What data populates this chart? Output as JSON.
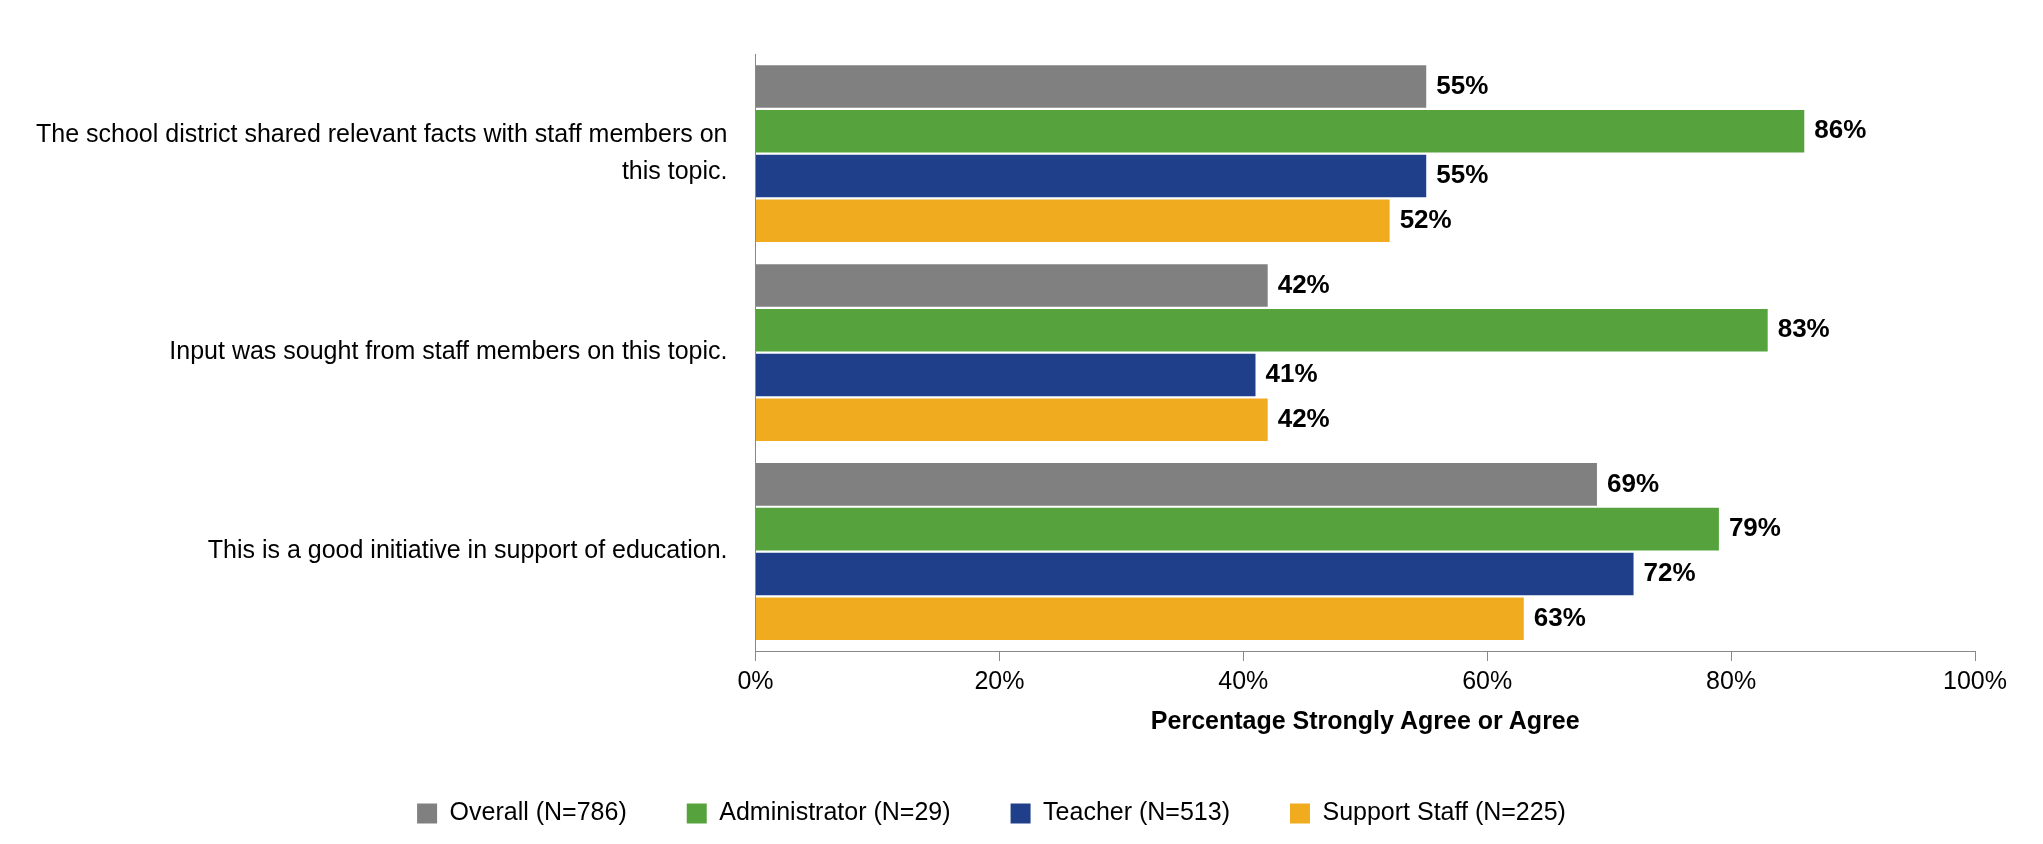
{
  "chart_data": {
    "type": "bar",
    "orientation": "horizontal",
    "xlabel": "Percentage Strongly Agree or Agree",
    "categories": [
      "The school district shared relevant facts with staff members on this topic.",
      "Input was sought from staff members on this topic.",
      "This is a good initiative in support of education."
    ],
    "series": [
      {
        "name": "Overall (N=786)",
        "color": "#808080",
        "values": [
          55,
          42,
          69
        ],
        "value_labels": [
          "55%",
          "42%",
          "69%"
        ]
      },
      {
        "name": "Administrator (N=29)",
        "color": "#56a33e",
        "values": [
          86,
          83,
          79
        ],
        "value_labels": [
          "86%",
          "83%",
          "79%"
        ]
      },
      {
        "name": "Teacher (N=513)",
        "color": "#1f3f8a",
        "values": [
          55,
          41,
          72
        ],
        "value_labels": [
          "55%",
          "41%",
          "72%"
        ]
      },
      {
        "name": "Support Staff (N=225)",
        "color": "#f0ab1f",
        "values": [
          52,
          42,
          63
        ],
        "value_labels": [
          "52%",
          "42%",
          "63%"
        ]
      }
    ],
    "xlim": [
      0,
      100
    ],
    "xticks": [
      {
        "value": 0,
        "label": "0%"
      },
      {
        "value": 20,
        "label": "20%"
      },
      {
        "value": 40,
        "label": "40%"
      },
      {
        "value": 60,
        "label": "60%"
      },
      {
        "value": 80,
        "label": "80%"
      },
      {
        "value": 100,
        "label": "100%"
      }
    ],
    "legend": "bottom"
  }
}
